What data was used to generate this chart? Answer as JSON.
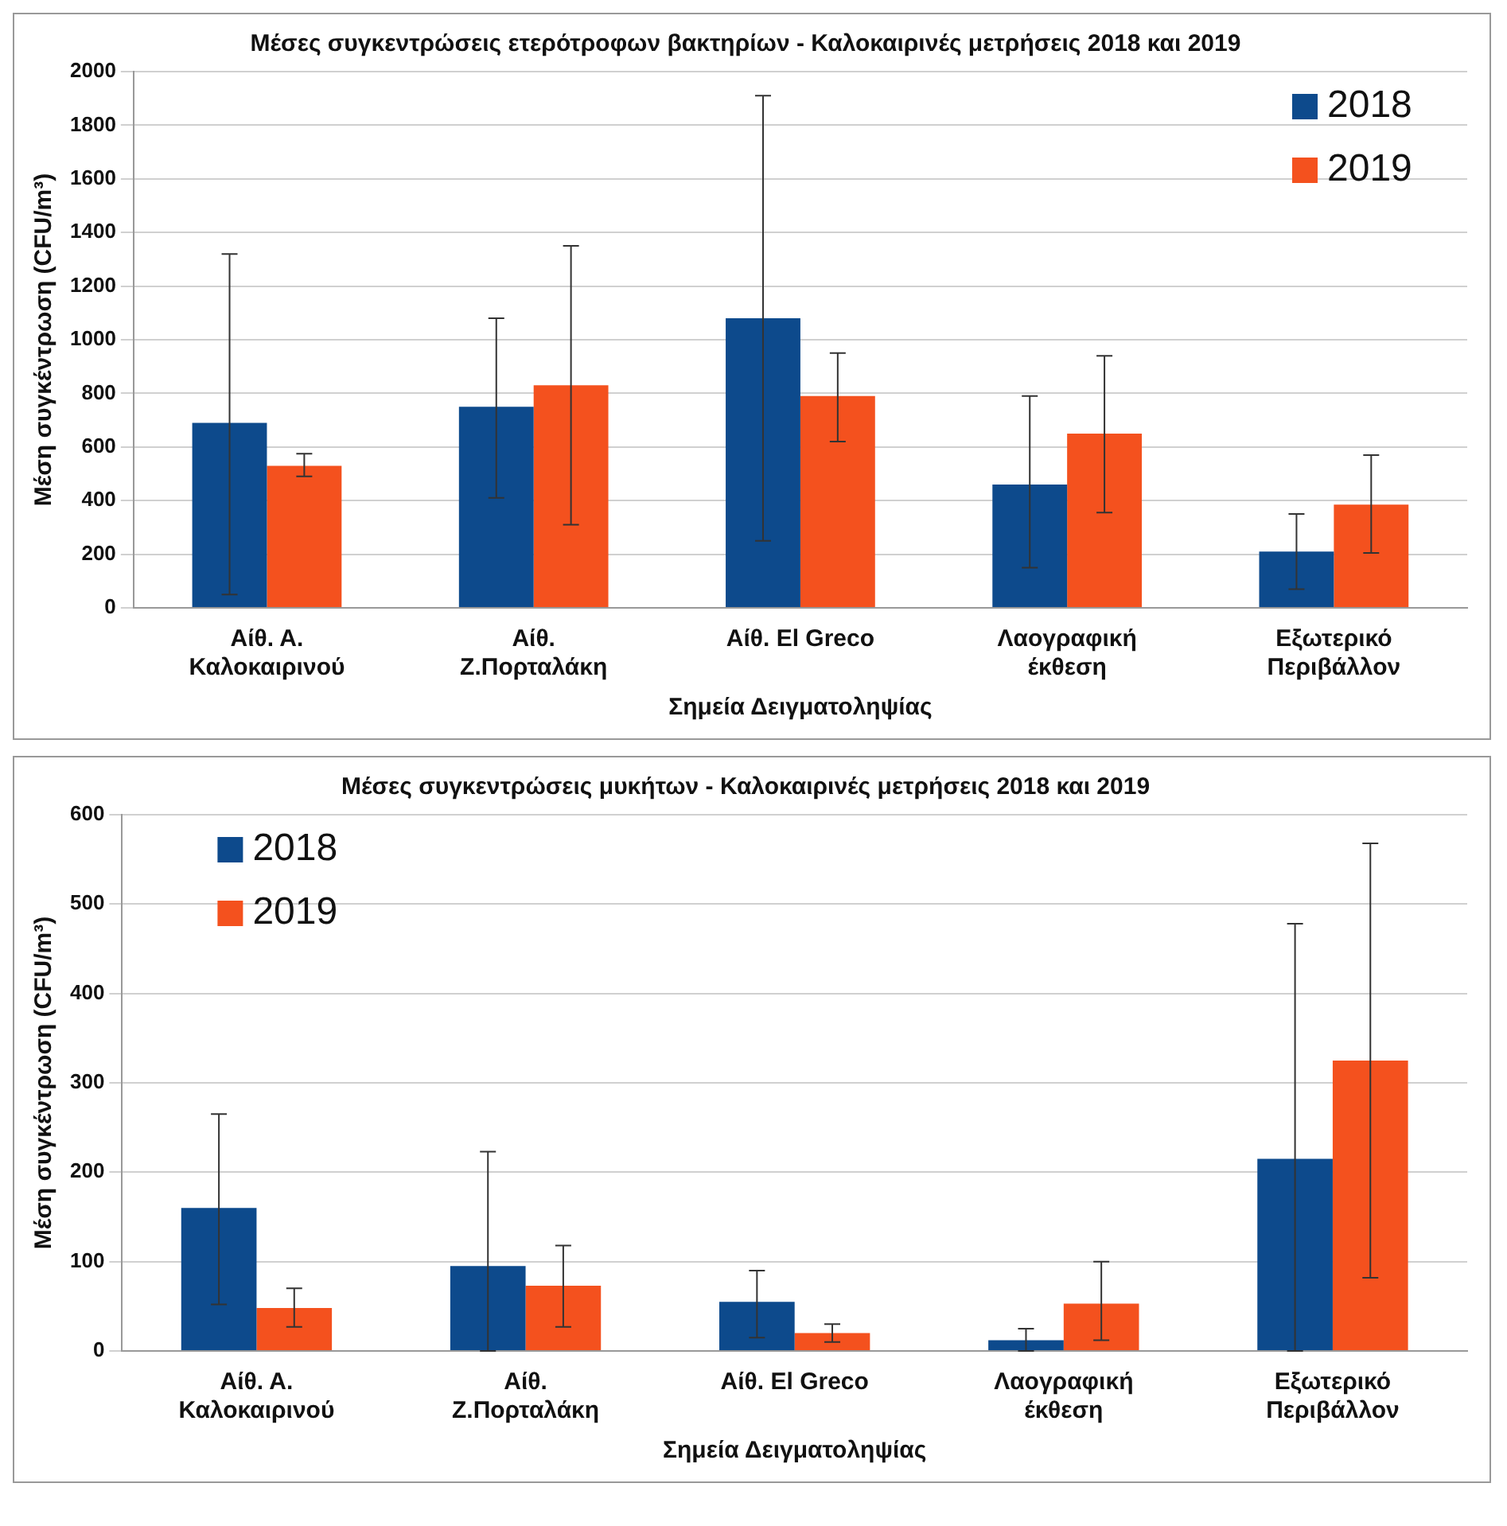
{
  "chart_data": [
    {
      "type": "bar",
      "title": "Μέσες συγκεντρώσεις ετερότροφων βακτηρίων - Καλοκαιρινές μετρήσεις 2018 και 2019",
      "xlabel": "Σημεία Δειγματοληψίας",
      "ylabel": "Μέση συγκέντρωση (CFU/m³)",
      "categories": [
        "Αίθ. Α.\nΚαλοκαιρινού",
        "Αίθ.\nΖ.Πορταλάκη",
        "Αίθ. El Greco",
        "Λαογραφική\nέκθεση",
        "Εξωτερικό\nΠεριβάλλον"
      ],
      "series": [
        {
          "name": "2018",
          "color": "#0d4a8c",
          "values": [
            690,
            750,
            1080,
            460,
            210
          ],
          "errors": [
            [
              50,
              1320
            ],
            [
              410,
              1080
            ],
            [
              250,
              1910
            ],
            [
              150,
              790
            ],
            [
              70,
              350
            ]
          ]
        },
        {
          "name": "2019",
          "color": "#f4511e",
          "values": [
            530,
            830,
            790,
            650,
            385
          ],
          "errors": [
            [
              490,
              575
            ],
            [
              310,
              1350
            ],
            [
              620,
              950
            ],
            [
              355,
              940
            ],
            [
              205,
              570
            ]
          ]
        }
      ],
      "ylim": [
        0,
        2000
      ],
      "yticks": [
        0,
        200,
        400,
        600,
        800,
        1000,
        1200,
        1400,
        1600,
        1800,
        2000
      ],
      "grid": "y",
      "legend": "top right"
    },
    {
      "type": "bar",
      "title": "Μέσες συγκεντρώσεις μυκήτων - Καλοκαιρινές μετρήσεις 2018 και 2019",
      "xlabel": "Σημεία Δειγματοληψίας",
      "ylabel": "Μέση συγκέντρωση (CFU/m³)",
      "categories": [
        "Αίθ. Α.\nΚαλοκαιρινού",
        "Αίθ.\nΖ.Πορταλάκη",
        "Αίθ. El Greco",
        "Λαογραφική\nέκθεση",
        "Εξωτερικό\nΠεριβάλλον"
      ],
      "series": [
        {
          "name": "2018",
          "color": "#0d4a8c",
          "values": [
            160,
            95,
            55,
            12,
            215
          ],
          "errors": [
            [
              52,
              265
            ],
            [
              0,
              223
            ],
            [
              15,
              90
            ],
            [
              0,
              25
            ],
            [
              0,
              478
            ]
          ]
        },
        {
          "name": "2019",
          "color": "#f4511e",
          "values": [
            48,
            73,
            20,
            53,
            325
          ],
          "errors": [
            [
              27,
              70
            ],
            [
              27,
              118
            ],
            [
              10,
              30
            ],
            [
              12,
              100
            ],
            [
              82,
              568
            ]
          ]
        }
      ],
      "ylim": [
        0,
        600
      ],
      "yticks": [
        0,
        100,
        200,
        300,
        400,
        500,
        600
      ],
      "grid": "y",
      "legend": "top left"
    }
  ]
}
